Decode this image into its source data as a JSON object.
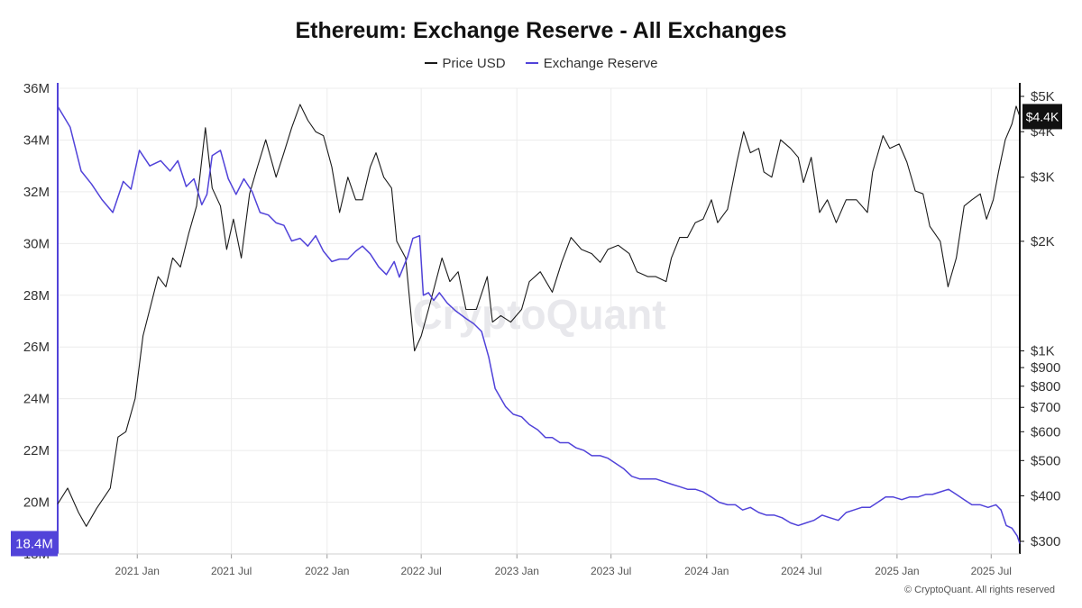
{
  "chart_data": {
    "type": "line",
    "title": "Ethereum: Exchange Reserve - All Exchanges",
    "legend_position": "top-center",
    "grid": true,
    "x_ticks": [
      "2021 Jan",
      "2021 Jul",
      "2022 Jan",
      "2022 Jul",
      "2023 Jan",
      "2023 Jul",
      "2024 Jan",
      "2024 Jul",
      "2025 Jan",
      "2025 Jul"
    ],
    "x_range": [
      "2020-08-01",
      "2025-08-25"
    ],
    "left_axis": {
      "ticks": [
        "18M",
        "20M",
        "22M",
        "24M",
        "26M",
        "28M",
        "30M",
        "32M",
        "34M",
        "36M"
      ],
      "ylim": [
        18000000,
        36000000
      ],
      "current_value_label": "18.4M",
      "color": "#5143d9"
    },
    "right_axis": {
      "scale": "log",
      "ticks": [
        "$300",
        "$400",
        "$500",
        "$600",
        "$700",
        "$800",
        "$900",
        "$1K",
        "$2K",
        "$3K",
        "$4K",
        "$5K"
      ],
      "ylim": [
        300,
        5000
      ],
      "current_value_label": "$4.4K"
    },
    "series": [
      {
        "name": "Price USD",
        "color": "#1a1a1a",
        "points": [
          [
            "2020-08-01",
            380
          ],
          [
            "2020-08-20",
            420
          ],
          [
            "2020-09-10",
            360
          ],
          [
            "2020-09-25",
            330
          ],
          [
            "2020-10-15",
            370
          ],
          [
            "2020-11-10",
            420
          ],
          [
            "2020-11-25",
            580
          ],
          [
            "2020-12-10",
            600
          ],
          [
            "2020-12-28",
            740
          ],
          [
            "2021-01-12",
            1100
          ],
          [
            "2021-01-25",
            1300
          ],
          [
            "2021-02-10",
            1600
          ],
          [
            "2021-02-25",
            1500
          ],
          [
            "2021-03-10",
            1800
          ],
          [
            "2021-03-25",
            1700
          ],
          [
            "2021-04-10",
            2100
          ],
          [
            "2021-04-25",
            2500
          ],
          [
            "2021-05-12",
            4100
          ],
          [
            "2021-05-25",
            2800
          ],
          [
            "2021-06-10",
            2500
          ],
          [
            "2021-06-22",
            1900
          ],
          [
            "2021-07-05",
            2300
          ],
          [
            "2021-07-20",
            1800
          ],
          [
            "2021-08-05",
            2700
          ],
          [
            "2021-08-20",
            3200
          ],
          [
            "2021-09-05",
            3800
          ],
          [
            "2021-09-25",
            3000
          ],
          [
            "2021-10-10",
            3500
          ],
          [
            "2021-10-25",
            4100
          ],
          [
            "2021-11-10",
            4750
          ],
          [
            "2021-11-25",
            4300
          ],
          [
            "2021-12-10",
            4000
          ],
          [
            "2021-12-25",
            3900
          ],
          [
            "2022-01-10",
            3200
          ],
          [
            "2022-01-25",
            2400
          ],
          [
            "2022-02-10",
            3000
          ],
          [
            "2022-02-25",
            2600
          ],
          [
            "2022-03-10",
            2600
          ],
          [
            "2022-03-25",
            3200
          ],
          [
            "2022-04-05",
            3500
          ],
          [
            "2022-04-20",
            3000
          ],
          [
            "2022-05-05",
            2800
          ],
          [
            "2022-05-15",
            2000
          ],
          [
            "2022-06-01",
            1800
          ],
          [
            "2022-06-18",
            1000
          ],
          [
            "2022-07-01",
            1100
          ],
          [
            "2022-07-15",
            1300
          ],
          [
            "2022-08-10",
            1800
          ],
          [
            "2022-08-25",
            1550
          ],
          [
            "2022-09-10",
            1650
          ],
          [
            "2022-09-25",
            1300
          ],
          [
            "2022-10-15",
            1300
          ],
          [
            "2022-11-05",
            1600
          ],
          [
            "2022-11-15",
            1200
          ],
          [
            "2022-12-01",
            1250
          ],
          [
            "2022-12-20",
            1200
          ],
          [
            "2023-01-10",
            1300
          ],
          [
            "2023-01-25",
            1550
          ],
          [
            "2023-02-15",
            1650
          ],
          [
            "2023-03-10",
            1450
          ],
          [
            "2023-03-28",
            1750
          ],
          [
            "2023-04-15",
            2050
          ],
          [
            "2023-05-05",
            1900
          ],
          [
            "2023-05-25",
            1850
          ],
          [
            "2023-06-10",
            1750
          ],
          [
            "2023-06-25",
            1900
          ],
          [
            "2023-07-15",
            1950
          ],
          [
            "2023-08-05",
            1850
          ],
          [
            "2023-08-20",
            1650
          ],
          [
            "2023-09-10",
            1600
          ],
          [
            "2023-09-25",
            1600
          ],
          [
            "2023-10-15",
            1550
          ],
          [
            "2023-10-25",
            1800
          ],
          [
            "2023-11-10",
            2050
          ],
          [
            "2023-11-25",
            2050
          ],
          [
            "2023-12-10",
            2250
          ],
          [
            "2023-12-25",
            2300
          ],
          [
            "2024-01-10",
            2600
          ],
          [
            "2024-01-22",
            2250
          ],
          [
            "2024-02-10",
            2450
          ],
          [
            "2024-02-28",
            3300
          ],
          [
            "2024-03-12",
            4000
          ],
          [
            "2024-03-25",
            3500
          ],
          [
            "2024-04-10",
            3600
          ],
          [
            "2024-04-20",
            3100
          ],
          [
            "2024-05-05",
            3000
          ],
          [
            "2024-05-22",
            3800
          ],
          [
            "2024-06-10",
            3600
          ],
          [
            "2024-06-25",
            3400
          ],
          [
            "2024-07-05",
            2900
          ],
          [
            "2024-07-20",
            3400
          ],
          [
            "2024-08-05",
            2400
          ],
          [
            "2024-08-20",
            2600
          ],
          [
            "2024-09-06",
            2250
          ],
          [
            "2024-09-25",
            2600
          ],
          [
            "2024-10-15",
            2600
          ],
          [
            "2024-11-05",
            2400
          ],
          [
            "2024-11-15",
            3100
          ],
          [
            "2024-12-05",
            3900
          ],
          [
            "2024-12-18",
            3600
          ],
          [
            "2025-01-05",
            3700
          ],
          [
            "2025-01-20",
            3300
          ],
          [
            "2025-02-05",
            2750
          ],
          [
            "2025-02-20",
            2700
          ],
          [
            "2025-03-05",
            2200
          ],
          [
            "2025-03-25",
            2000
          ],
          [
            "2025-04-09",
            1500
          ],
          [
            "2025-04-25",
            1800
          ],
          [
            "2025-05-10",
            2500
          ],
          [
            "2025-05-25",
            2600
          ],
          [
            "2025-06-10",
            2700
          ],
          [
            "2025-06-22",
            2300
          ],
          [
            "2025-07-05",
            2600
          ],
          [
            "2025-07-15",
            3100
          ],
          [
            "2025-07-28",
            3800
          ],
          [
            "2025-08-10",
            4200
          ],
          [
            "2025-08-18",
            4700
          ],
          [
            "2025-08-25",
            4400
          ]
        ]
      },
      {
        "name": "Exchange Reserve",
        "color": "#5143d9",
        "points": [
          [
            "2020-08-01",
            35300000
          ],
          [
            "2020-08-25",
            34500000
          ],
          [
            "2020-09-15",
            32800000
          ],
          [
            "2020-10-05",
            32300000
          ],
          [
            "2020-10-25",
            31700000
          ],
          [
            "2020-11-15",
            31200000
          ],
          [
            "2020-12-05",
            32400000
          ],
          [
            "2020-12-20",
            32100000
          ],
          [
            "2021-01-05",
            33600000
          ],
          [
            "2021-01-25",
            33000000
          ],
          [
            "2021-02-15",
            33200000
          ],
          [
            "2021-03-05",
            32800000
          ],
          [
            "2021-03-20",
            33200000
          ],
          [
            "2021-04-05",
            32200000
          ],
          [
            "2021-04-20",
            32500000
          ],
          [
            "2021-05-05",
            31500000
          ],
          [
            "2021-05-15",
            31900000
          ],
          [
            "2021-05-25",
            33400000
          ],
          [
            "2021-06-10",
            33600000
          ],
          [
            "2021-06-25",
            32500000
          ],
          [
            "2021-07-10",
            31900000
          ],
          [
            "2021-07-25",
            32500000
          ],
          [
            "2021-08-10",
            32000000
          ],
          [
            "2021-08-25",
            31200000
          ],
          [
            "2021-09-10",
            31100000
          ],
          [
            "2021-09-25",
            30800000
          ],
          [
            "2021-10-10",
            30700000
          ],
          [
            "2021-10-25",
            30100000
          ],
          [
            "2021-11-10",
            30200000
          ],
          [
            "2021-11-25",
            29900000
          ],
          [
            "2021-12-10",
            30300000
          ],
          [
            "2021-12-25",
            29700000
          ],
          [
            "2022-01-10",
            29300000
          ],
          [
            "2022-01-25",
            29400000
          ],
          [
            "2022-02-10",
            29400000
          ],
          [
            "2022-02-25",
            29700000
          ],
          [
            "2022-03-10",
            29900000
          ],
          [
            "2022-03-25",
            29600000
          ],
          [
            "2022-04-10",
            29100000
          ],
          [
            "2022-04-25",
            28800000
          ],
          [
            "2022-05-10",
            29300000
          ],
          [
            "2022-05-20",
            28700000
          ],
          [
            "2022-06-05",
            29500000
          ],
          [
            "2022-06-15",
            30200000
          ],
          [
            "2022-06-28",
            30300000
          ],
          [
            "2022-07-05",
            28000000
          ],
          [
            "2022-07-15",
            28100000
          ],
          [
            "2022-07-25",
            27800000
          ],
          [
            "2022-08-05",
            28100000
          ],
          [
            "2022-08-20",
            27700000
          ],
          [
            "2022-09-05",
            27400000
          ],
          [
            "2022-09-25",
            27100000
          ],
          [
            "2022-10-10",
            26900000
          ],
          [
            "2022-10-25",
            26600000
          ],
          [
            "2022-11-08",
            25600000
          ],
          [
            "2022-11-20",
            24400000
          ],
          [
            "2022-12-10",
            23700000
          ],
          [
            "2022-12-25",
            23400000
          ],
          [
            "2023-01-10",
            23300000
          ],
          [
            "2023-01-25",
            23000000
          ],
          [
            "2023-02-10",
            22800000
          ],
          [
            "2023-02-25",
            22500000
          ],
          [
            "2023-03-10",
            22500000
          ],
          [
            "2023-03-25",
            22300000
          ],
          [
            "2023-04-10",
            22300000
          ],
          [
            "2023-04-25",
            22100000
          ],
          [
            "2023-05-10",
            22000000
          ],
          [
            "2023-05-25",
            21800000
          ],
          [
            "2023-06-10",
            21800000
          ],
          [
            "2023-06-25",
            21700000
          ],
          [
            "2023-07-10",
            21500000
          ],
          [
            "2023-07-25",
            21300000
          ],
          [
            "2023-08-10",
            21000000
          ],
          [
            "2023-08-25",
            20900000
          ],
          [
            "2023-09-10",
            20900000
          ],
          [
            "2023-09-25",
            20900000
          ],
          [
            "2023-10-10",
            20800000
          ],
          [
            "2023-10-25",
            20700000
          ],
          [
            "2023-11-10",
            20600000
          ],
          [
            "2023-11-25",
            20500000
          ],
          [
            "2023-12-10",
            20500000
          ],
          [
            "2023-12-25",
            20400000
          ],
          [
            "2024-01-10",
            20200000
          ],
          [
            "2024-01-25",
            20000000
          ],
          [
            "2024-02-10",
            19900000
          ],
          [
            "2024-02-25",
            19900000
          ],
          [
            "2024-03-10",
            19700000
          ],
          [
            "2024-03-25",
            19800000
          ],
          [
            "2024-04-10",
            19600000
          ],
          [
            "2024-04-25",
            19500000
          ],
          [
            "2024-05-10",
            19500000
          ],
          [
            "2024-05-25",
            19400000
          ],
          [
            "2024-06-10",
            19200000
          ],
          [
            "2024-06-25",
            19100000
          ],
          [
            "2024-07-10",
            19200000
          ],
          [
            "2024-07-25",
            19300000
          ],
          [
            "2024-08-10",
            19500000
          ],
          [
            "2024-08-25",
            19400000
          ],
          [
            "2024-09-10",
            19300000
          ],
          [
            "2024-09-25",
            19600000
          ],
          [
            "2024-10-10",
            19700000
          ],
          [
            "2024-10-25",
            19800000
          ],
          [
            "2024-11-10",
            19800000
          ],
          [
            "2024-11-25",
            20000000
          ],
          [
            "2024-12-10",
            20200000
          ],
          [
            "2024-12-25",
            20200000
          ],
          [
            "2025-01-10",
            20100000
          ],
          [
            "2025-01-25",
            20200000
          ],
          [
            "2025-02-10",
            20200000
          ],
          [
            "2025-02-25",
            20300000
          ],
          [
            "2025-03-10",
            20300000
          ],
          [
            "2025-03-25",
            20400000
          ],
          [
            "2025-04-10",
            20500000
          ],
          [
            "2025-04-25",
            20300000
          ],
          [
            "2025-05-10",
            20100000
          ],
          [
            "2025-05-25",
            19900000
          ],
          [
            "2025-06-10",
            19900000
          ],
          [
            "2025-06-25",
            19800000
          ],
          [
            "2025-07-10",
            19900000
          ],
          [
            "2025-07-20",
            19700000
          ],
          [
            "2025-07-30",
            19100000
          ],
          [
            "2025-08-10",
            19000000
          ],
          [
            "2025-08-20",
            18700000
          ],
          [
            "2025-08-25",
            18400000
          ]
        ]
      }
    ]
  },
  "watermark": "CryptoQuant",
  "footer": {
    "copyright": "© CryptoQuant. All rights reserved"
  }
}
